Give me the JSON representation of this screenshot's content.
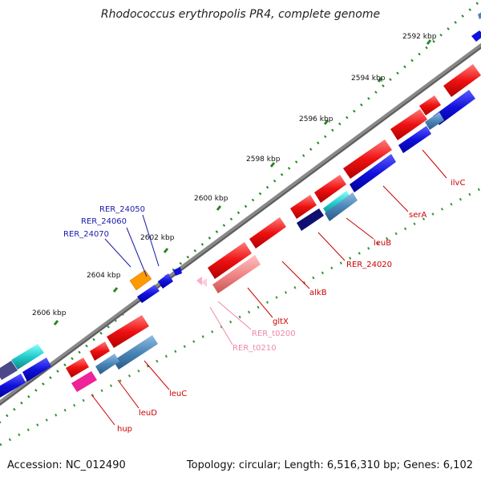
{
  "title": "Rhodococcus erythropolis PR4, complete genome",
  "footer": {
    "accession": "Accession: NC_012490",
    "summary": "Topology: circular; Length: 6,516,310 bp; Genes: 6,102"
  },
  "ticks": [
    {
      "label": "2592 kbp"
    },
    {
      "label": "2594 kbp"
    },
    {
      "label": "2596 kbp"
    },
    {
      "label": "2598 kbp"
    },
    {
      "label": "2600 kbp"
    },
    {
      "label": "2602 kbp"
    },
    {
      "label": "2604 kbp"
    },
    {
      "label": "2606 kbp"
    }
  ],
  "gene_labels": [
    {
      "label": "ilvC",
      "color": "#cc0000"
    },
    {
      "label": "serA",
      "color": "#cc0000"
    },
    {
      "label": "leuB",
      "color": "#cc0000"
    },
    {
      "label": "RER_24020",
      "color": "#cc0000"
    },
    {
      "label": "alkB",
      "color": "#cc0000"
    },
    {
      "label": "gltX",
      "color": "#cc0000"
    },
    {
      "label": "RER_t0200",
      "color": "#ee88aa"
    },
    {
      "label": "RER_t0210",
      "color": "#ee88aa"
    },
    {
      "label": "leuC",
      "color": "#cc0000"
    },
    {
      "label": "leuD",
      "color": "#cc0000"
    },
    {
      "label": "hup",
      "color": "#cc0000"
    },
    {
      "label": "RER_24050",
      "color": "#1a1aaa"
    },
    {
      "label": "RER_24060",
      "color": "#1a1aaa"
    },
    {
      "label": "RER_24070",
      "color": "#1a1aaa"
    }
  ],
  "colors": {
    "backbone": "#888888",
    "cds_red": "#ee1111",
    "cds_blue": "#1111dd",
    "cds_steel": "#4a86b8",
    "cds_cyan": "#22cccc",
    "cds_navy": "#101070",
    "cds_orange": "#ff9900",
    "cds_pink": "#ee2299",
    "trna_pink": "#ffaacc",
    "tick_green": "#228822"
  }
}
